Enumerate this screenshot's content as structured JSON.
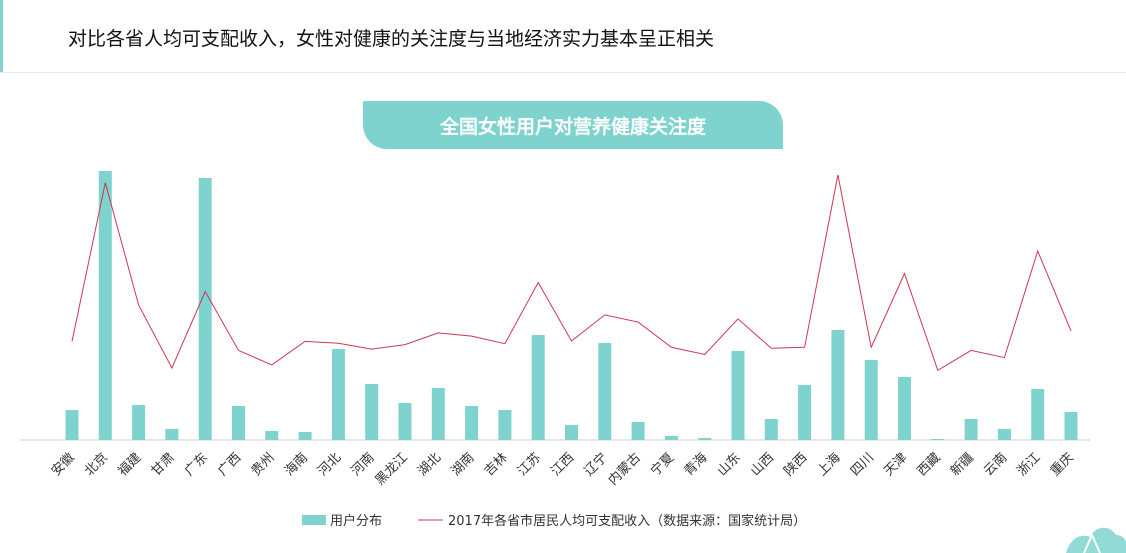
{
  "headline": "对比各省人均可支配收入，女性对健康的关注度与当地经济实力基本呈正相关",
  "colors": {
    "bar": "#7fd3cf",
    "line": "#d0364f",
    "axis": "#cccccc",
    "accent": "#7fd3cf"
  },
  "chart_data": {
    "type": "bar",
    "title": "全国女性用户对营养健康关注度",
    "categories": [
      "安徽",
      "北京",
      "福建",
      "甘肃",
      "广东",
      "广西",
      "贵州",
      "海南",
      "河北",
      "河南",
      "黑龙江",
      "湖北",
      "湖南",
      "吉林",
      "江苏",
      "江西",
      "辽宁",
      "内蒙古",
      "宁夏",
      "青海",
      "山东",
      "山西",
      "陕西",
      "上海",
      "四川",
      "天津",
      "西藏",
      "新疆",
      "云南",
      "浙江",
      "重庆"
    ],
    "series": [
      {
        "name": "用户分布",
        "type": "bar",
        "values": [
          30,
          269,
          35,
          11,
          262,
          34,
          9,
          8,
          91,
          56,
          37,
          52,
          34,
          30,
          105,
          15,
          97,
          18,
          4,
          2,
          89,
          21,
          55,
          110,
          80,
          63,
          1,
          21,
          11,
          51,
          28
        ]
      },
      {
        "name": "2017年各省市居民人均可支配收入（数据来源：国家统计局）",
        "type": "line",
        "values": [
          21900,
          57200,
          30000,
          16000,
          33000,
          19900,
          16700,
          21900,
          21500,
          20200,
          21200,
          23800,
          23100,
          21400,
          35000,
          22000,
          27800,
          26200,
          20600,
          19000,
          26900,
          20400,
          20600,
          58900,
          20600,
          37000,
          15500,
          19900,
          18300,
          42000,
          24200
        ]
      }
    ],
    "legend_position": "bottom",
    "grid": false
  }
}
